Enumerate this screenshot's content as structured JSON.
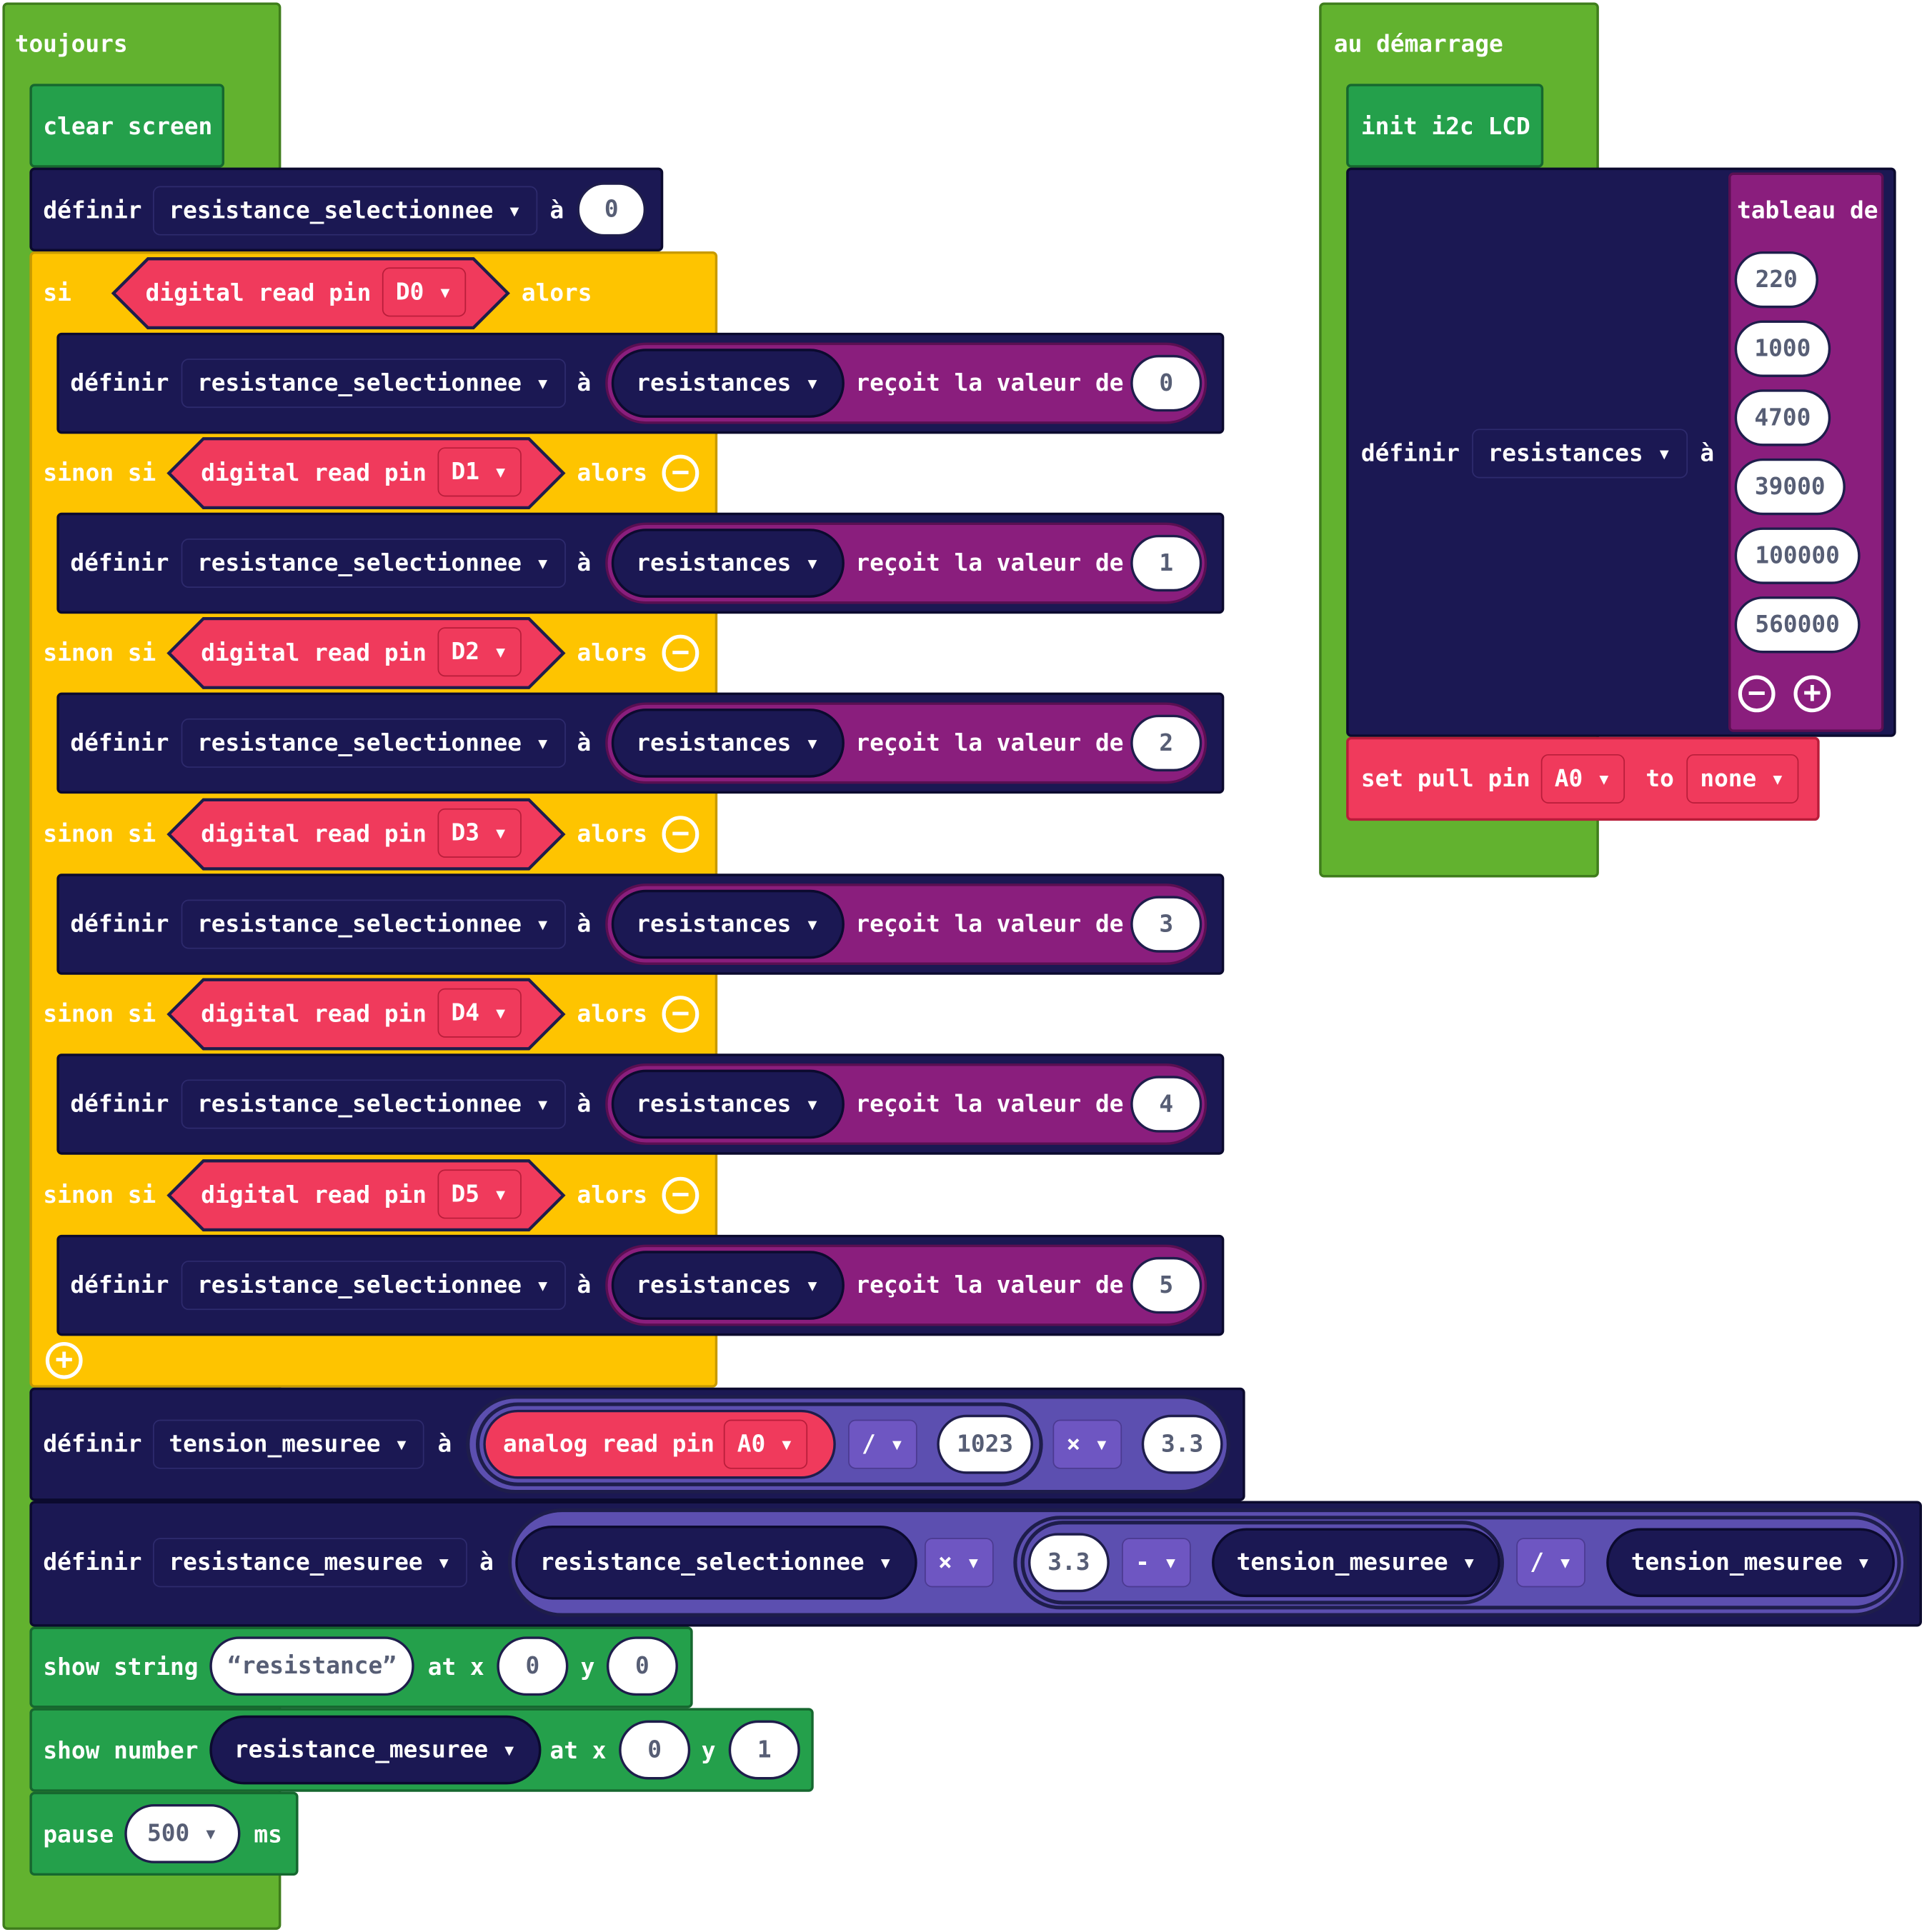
{
  "toujours": {
    "label": "toujours",
    "clear_screen": "clear screen",
    "set_initial": {
      "define": "définir",
      "var": "resistance_selectionnee",
      "to": "à",
      "value": "0"
    },
    "if_block": {
      "si": "si",
      "sinon_si": "sinon si",
      "alors": "alors",
      "read_label": "digital read pin",
      "branches": [
        {
          "pin": "D0",
          "define": "définir",
          "var": "resistance_selectionnee",
          "to": "à",
          "list": "resistances",
          "get": "reçoit la valeur de",
          "index": "0"
        },
        {
          "pin": "D1",
          "define": "définir",
          "var": "resistance_selectionnee",
          "to": "à",
          "list": "resistances",
          "get": "reçoit la valeur de",
          "index": "1"
        },
        {
          "pin": "D2",
          "define": "définir",
          "var": "resistance_selectionnee",
          "to": "à",
          "list": "resistances",
          "get": "reçoit la valeur de",
          "index": "2"
        },
        {
          "pin": "D3",
          "define": "définir",
          "var": "resistance_selectionnee",
          "to": "à",
          "list": "resistances",
          "get": "reçoit la valeur de",
          "index": "3"
        },
        {
          "pin": "D4",
          "define": "définir",
          "var": "resistance_selectionnee",
          "to": "à",
          "list": "resistances",
          "get": "reçoit la valeur de",
          "index": "4"
        },
        {
          "pin": "D5",
          "define": "définir",
          "var": "resistance_selectionnee",
          "to": "à",
          "list": "resistances",
          "get": "reçoit la valeur de",
          "index": "5"
        }
      ]
    },
    "tension": {
      "define": "définir",
      "var": "tension_mesuree",
      "to": "à",
      "read": "analog read pin",
      "pin": "A0",
      "op1": "/",
      "val1": "1023",
      "op2": "×",
      "val2": "3.3"
    },
    "resistance": {
      "define": "définir",
      "var": "resistance_mesuree",
      "to": "à",
      "a": "resistance_selectionnee",
      "op1": "×",
      "c": "3.3",
      "op2": "-",
      "b": "tension_mesuree",
      "op3": "/",
      "d": "tension_mesuree"
    },
    "show_string": {
      "label": "show string",
      "value": "resistance",
      "at_x": "at x",
      "x": "0",
      "y_label": "y",
      "y": "0"
    },
    "show_number": {
      "label": "show number",
      "value": "resistance_mesuree",
      "at_x": "at x",
      "x": "0",
      "y_label": "y",
      "y": "1"
    },
    "pause": {
      "label": "pause",
      "value": "500",
      "unit": "ms"
    }
  },
  "demarrage": {
    "label": "au démarrage",
    "init": "init i2c LCD",
    "define": "définir",
    "var": "resistances",
    "to": "à",
    "array_label": "tableau de",
    "values": [
      "220",
      "1000",
      "4700",
      "39000",
      "100000",
      "560000"
    ],
    "pull": {
      "label": "set pull pin",
      "pin": "A0",
      "to": "to",
      "mode": "none"
    }
  },
  "colors": {
    "loop": "#62b22f",
    "lcd": "#24a04b",
    "variables": "#1b1853",
    "logic": "#fec400",
    "pins": "#f03a5c",
    "arrays": "#8a1e7d",
    "math": "#5c4fb0"
  }
}
